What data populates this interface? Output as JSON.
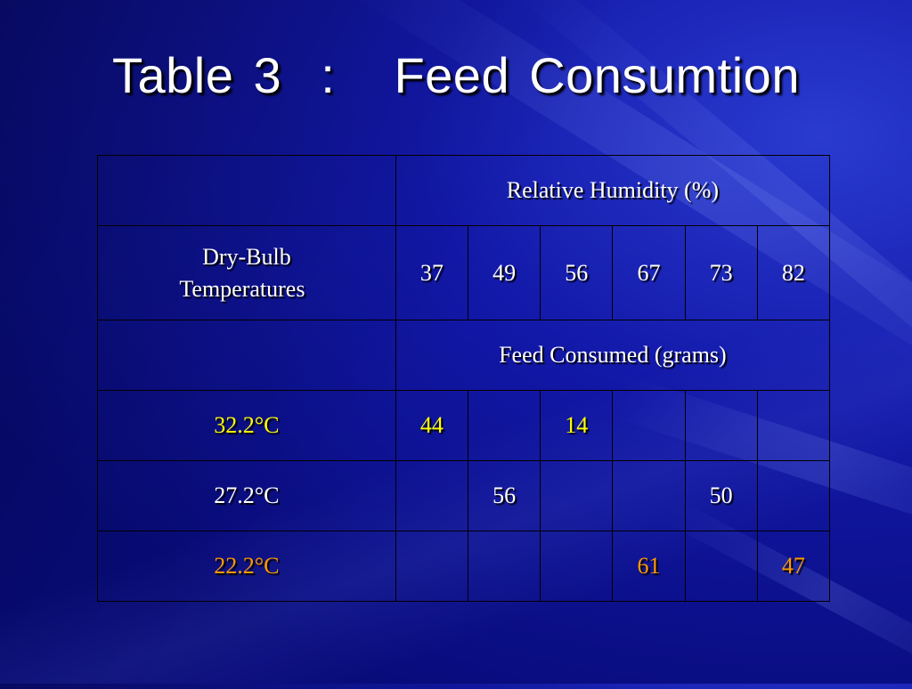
{
  "slide": {
    "title": "Table 3  :   Feed Consumtion"
  },
  "table": {
    "header_humidity": "Relative Humidity (%)",
    "row_label_title_line1": "Dry-Bulb",
    "row_label_title_line2": "Temperatures",
    "humidity_values": [
      "37",
      "49",
      "56",
      "67",
      "73",
      "82"
    ],
    "header_feed": "Feed Consumed (grams)",
    "rows": [
      {
        "temperature": "32.2°C",
        "cells": [
          "44",
          "",
          "14",
          "",
          "",
          ""
        ],
        "color": "#ffff00"
      },
      {
        "temperature": "27.2°C",
        "cells": [
          "",
          "56",
          "",
          "",
          "50",
          ""
        ],
        "color": "#ffffff"
      },
      {
        "temperature": "22.2°C",
        "cells": [
          "",
          "",
          "",
          "61",
          "",
          "47"
        ],
        "color": "#ff9900"
      }
    ]
  },
  "colors": {
    "background": "#0a0d8a",
    "title": "#ffffff",
    "highlight_yellow": "#ffff00",
    "highlight_orange": "#ff9900"
  }
}
